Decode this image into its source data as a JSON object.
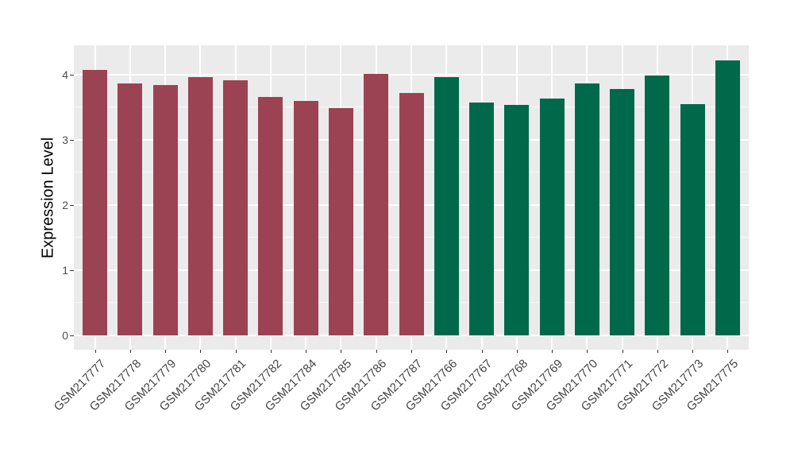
{
  "figure": {
    "background": "#FFFFFF",
    "panel_background": "#EBEBEB",
    "grid_major_color": "#FFFFFF",
    "grid_minor_color": "#F6F6F6",
    "axis_text_color": "#4D4D4D",
    "tick_mark_color": "#333333"
  },
  "chart_data": {
    "type": "bar",
    "title": "",
    "xlabel": "",
    "ylabel": "Expression Level",
    "y_ticks": [
      0,
      1,
      2,
      3,
      4
    ],
    "ylim": [
      -0.22,
      4.43
    ],
    "grid": true,
    "legend": "none",
    "group_colors": {
      "maroon": "#9B4353",
      "green": "#00694A"
    },
    "bars": [
      {
        "label": "GSM217777",
        "value": 4.07,
        "group": "maroon"
      },
      {
        "label": "GSM217778",
        "value": 3.86,
        "group": "maroon"
      },
      {
        "label": "GSM217779",
        "value": 3.84,
        "group": "maroon"
      },
      {
        "label": "GSM217780",
        "value": 3.96,
        "group": "maroon"
      },
      {
        "label": "GSM217781",
        "value": 3.91,
        "group": "maroon"
      },
      {
        "label": "GSM217782",
        "value": 3.66,
        "group": "maroon"
      },
      {
        "label": "GSM217784",
        "value": 3.59,
        "group": "maroon"
      },
      {
        "label": "GSM217785",
        "value": 3.48,
        "group": "maroon"
      },
      {
        "label": "GSM217786",
        "value": 4.01,
        "group": "maroon"
      },
      {
        "label": "GSM217787",
        "value": 3.72,
        "group": "maroon"
      },
      {
        "label": "GSM217766",
        "value": 3.96,
        "group": "green"
      },
      {
        "label": "GSM217767",
        "value": 3.57,
        "group": "green"
      },
      {
        "label": "GSM217768",
        "value": 3.53,
        "group": "green"
      },
      {
        "label": "GSM217769",
        "value": 3.63,
        "group": "green"
      },
      {
        "label": "GSM217770",
        "value": 3.86,
        "group": "green"
      },
      {
        "label": "GSM217771",
        "value": 3.77,
        "group": "green"
      },
      {
        "label": "GSM217772",
        "value": 3.98,
        "group": "green"
      },
      {
        "label": "GSM217773",
        "value": 3.55,
        "group": "green"
      },
      {
        "label": "GSM217775",
        "value": 4.22,
        "group": "green"
      }
    ]
  }
}
